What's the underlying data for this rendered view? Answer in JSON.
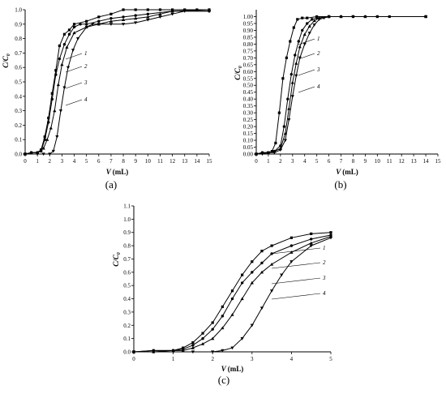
{
  "chart_data": [
    {
      "type": "line",
      "panel_label": "(a)",
      "xlabel_var": "V",
      "xlabel_unit": "(mL)",
      "ylabel_main": "C/C",
      "ylabel_sub": "0",
      "xlim": [
        0,
        15
      ],
      "ylim": [
        0,
        1.0
      ],
      "x_ticks": [
        "0",
        "1",
        "2",
        "3",
        "4",
        "5",
        "6",
        "7",
        "8",
        "9",
        "10",
        "11",
        "12",
        "13",
        "14",
        "15"
      ],
      "y_ticks": [
        "0.0",
        "0.1",
        "0.2",
        "0.3",
        "0.4",
        "0.5",
        "0.6",
        "0.7",
        "0.8",
        "0.9",
        "1.0"
      ],
      "series": [
        {
          "name": "1",
          "marker": "square",
          "points": [
            [
              0,
              0
            ],
            [
              0.5,
              0.01
            ],
            [
              1,
              0.01
            ],
            [
              1.3,
              0.03
            ],
            [
              1.6,
              0.12
            ],
            [
              1.9,
              0.25
            ],
            [
              2.2,
              0.42
            ],
            [
              2.5,
              0.58
            ],
            [
              2.8,
              0.75
            ],
            [
              3.2,
              0.83
            ],
            [
              3.6,
              0.86
            ],
            [
              4,
              0.9
            ],
            [
              5,
              0.92
            ],
            [
              6,
              0.95
            ],
            [
              7,
              0.97
            ],
            [
              8,
              1.0
            ],
            [
              9,
              1.0
            ],
            [
              10,
              1.0
            ],
            [
              11,
              1.0
            ],
            [
              12,
              1.0
            ],
            [
              13,
              1.0
            ],
            [
              14,
              1.0
            ],
            [
              15,
              1.0
            ]
          ]
        },
        {
          "name": "2",
          "marker": "circle",
          "points": [
            [
              0,
              0
            ],
            [
              0.5,
              0.01
            ],
            [
              1,
              0.01
            ],
            [
              1.3,
              0.02
            ],
            [
              1.6,
              0.1
            ],
            [
              1.9,
              0.22
            ],
            [
              2.2,
              0.38
            ],
            [
              2.5,
              0.55
            ],
            [
              2.8,
              0.66
            ],
            [
              3.2,
              0.76
            ],
            [
              3.6,
              0.83
            ],
            [
              4,
              0.88
            ],
            [
              4.5,
              0.9
            ],
            [
              5,
              0.9
            ],
            [
              6,
              0.92
            ],
            [
              7,
              0.94
            ],
            [
              8,
              0.95
            ],
            [
              9,
              0.96
            ],
            [
              10,
              0.97
            ],
            [
              12,
              0.99
            ],
            [
              15,
              0.99
            ]
          ]
        },
        {
          "name": "3",
          "marker": "triangle-up",
          "points": [
            [
              0,
              0
            ],
            [
              0.5,
              0.01
            ],
            [
              1,
              0.01
            ],
            [
              1.5,
              0.04
            ],
            [
              1.8,
              0.1
            ],
            [
              2.1,
              0.18
            ],
            [
              2.4,
              0.3
            ],
            [
              2.7,
              0.48
            ],
            [
              3,
              0.62
            ],
            [
              3.4,
              0.74
            ],
            [
              4,
              0.84
            ],
            [
              5,
              0.88
            ],
            [
              6,
              0.9
            ],
            [
              7,
              0.92
            ],
            [
              8,
              0.93
            ],
            [
              9,
              0.94
            ],
            [
              10,
              0.95
            ],
            [
              11,
              0.97
            ],
            [
              12,
              0.99
            ],
            [
              15,
              1.0
            ]
          ]
        },
        {
          "name": "4",
          "marker": "triangle-down",
          "points": [
            [
              0,
              0
            ],
            [
              1,
              0.0
            ],
            [
              1.5,
              0.0
            ],
            [
              2,
              0.0
            ],
            [
              2.3,
              0.02
            ],
            [
              2.6,
              0.12
            ],
            [
              2.9,
              0.3
            ],
            [
              3.2,
              0.46
            ],
            [
              3.5,
              0.6
            ],
            [
              3.9,
              0.72
            ],
            [
              4.3,
              0.8
            ],
            [
              5,
              0.88
            ],
            [
              5.5,
              0.9
            ],
            [
              6,
              0.9
            ],
            [
              7,
              0.9
            ],
            [
              8,
              0.9
            ],
            [
              9,
              0.91
            ],
            [
              10,
              0.93
            ],
            [
              11,
              0.95
            ],
            [
              12,
              0.97
            ],
            [
              13,
              0.99
            ],
            [
              15,
              0.99
            ]
          ]
        }
      ]
    },
    {
      "type": "line",
      "panel_label": "(b)",
      "xlabel_var": "V",
      "xlabel_unit": "(mL)",
      "ylabel_main": "C/C",
      "ylabel_sub": "0",
      "xlim": [
        0,
        15
      ],
      "ylim": [
        0,
        1.05
      ],
      "x_ticks": [
        "0",
        "1",
        "2",
        "3",
        "4",
        "5",
        "6",
        "7",
        "8",
        "9",
        "10",
        "11",
        "12",
        "13",
        "14",
        "15"
      ],
      "y_ticks": [
        "0.00",
        "0.05",
        "0.10",
        "0.15",
        "0.20",
        "0.25",
        "0.30",
        "0.35",
        "0.40",
        "0.45",
        "0.50",
        "0.55",
        "0.60",
        "0.65",
        "0.70",
        "0.75",
        "0.80",
        "0.85",
        "0.90",
        "0.95",
        "1.00"
      ],
      "series": [
        {
          "name": "1",
          "marker": "square",
          "points": [
            [
              0,
              0
            ],
            [
              0.5,
              0.01
            ],
            [
              1,
              0.01
            ],
            [
              1.3,
              0.02
            ],
            [
              1.6,
              0.08
            ],
            [
              1.9,
              0.3
            ],
            [
              2.2,
              0.55
            ],
            [
              2.5,
              0.7
            ],
            [
              2.8,
              0.82
            ],
            [
              3.1,
              0.92
            ],
            [
              3.4,
              0.98
            ],
            [
              3.8,
              0.99
            ],
            [
              4.2,
              0.99
            ],
            [
              5,
              1.0
            ],
            [
              6,
              1.0
            ],
            [
              7,
              1.0
            ],
            [
              8,
              1.0
            ],
            [
              9,
              1.0
            ],
            [
              10,
              1.0
            ],
            [
              11,
              1.0
            ],
            [
              14,
              1.0
            ]
          ]
        },
        {
          "name": "2",
          "marker": "circle",
          "points": [
            [
              0,
              0
            ],
            [
              0.5,
              0.01
            ],
            [
              1,
              0.01
            ],
            [
              1.5,
              0.02
            ],
            [
              2,
              0.06
            ],
            [
              2.3,
              0.2
            ],
            [
              2.6,
              0.4
            ],
            [
              2.9,
              0.58
            ],
            [
              3.2,
              0.72
            ],
            [
              3.5,
              0.82
            ],
            [
              3.8,
              0.9
            ],
            [
              4.2,
              0.95
            ],
            [
              4.6,
              0.98
            ],
            [
              5,
              0.99
            ],
            [
              6,
              1.0
            ],
            [
              7,
              1.0
            ],
            [
              8,
              1.0
            ],
            [
              10,
              1.0
            ],
            [
              14,
              1.0
            ]
          ]
        },
        {
          "name": "3",
          "marker": "triangle-up",
          "points": [
            [
              0,
              0
            ],
            [
              0.5,
              0.01
            ],
            [
              1,
              0.01
            ],
            [
              1.5,
              0.02
            ],
            [
              2,
              0.04
            ],
            [
              2.4,
              0.15
            ],
            [
              2.7,
              0.33
            ],
            [
              3,
              0.52
            ],
            [
              3.3,
              0.66
            ],
            [
              3.6,
              0.78
            ],
            [
              4,
              0.87
            ],
            [
              4.4,
              0.93
            ],
            [
              4.8,
              0.97
            ],
            [
              5.2,
              0.99
            ],
            [
              6,
              1.0
            ],
            [
              7,
              1.0
            ],
            [
              9,
              1.0
            ],
            [
              14,
              1.0
            ]
          ]
        },
        {
          "name": "4",
          "marker": "triangle-down",
          "points": [
            [
              0,
              0
            ],
            [
              0.5,
              0.0
            ],
            [
              1,
              0.01
            ],
            [
              1.5,
              0.01
            ],
            [
              2,
              0.03
            ],
            [
              2.4,
              0.1
            ],
            [
              2.7,
              0.25
            ],
            [
              3,
              0.42
            ],
            [
              3.3,
              0.57
            ],
            [
              3.6,
              0.7
            ],
            [
              4,
              0.8
            ],
            [
              4.4,
              0.88
            ],
            [
              4.8,
              0.94
            ],
            [
              5.2,
              0.98
            ],
            [
              5.6,
              0.99
            ],
            [
              6,
              1.0
            ],
            [
              8,
              1.0
            ],
            [
              14,
              1.0
            ]
          ]
        }
      ]
    },
    {
      "type": "line",
      "panel_label": "(c)",
      "xlabel_var": "V",
      "xlabel_unit": "(mL)",
      "ylabel_main": "C/C",
      "ylabel_sub": "0",
      "xlim": [
        0,
        5
      ],
      "ylim": [
        0,
        1.1
      ],
      "x_ticks": [
        "0",
        "1",
        "2",
        "3",
        "4",
        "5"
      ],
      "y_ticks": [
        "0.0",
        "0.1",
        "0.2",
        "0.3",
        "0.4",
        "0.5",
        "0.6",
        "0.7",
        "0.8",
        "0.9",
        "1.0",
        "1.1"
      ],
      "series": [
        {
          "name": "1",
          "marker": "square",
          "points": [
            [
              0,
              0
            ],
            [
              0.5,
              0.01
            ],
            [
              1,
              0.01
            ],
            [
              1.25,
              0.03
            ],
            [
              1.5,
              0.07
            ],
            [
              1.75,
              0.14
            ],
            [
              2,
              0.22
            ],
            [
              2.25,
              0.34
            ],
            [
              2.5,
              0.46
            ],
            [
              2.75,
              0.58
            ],
            [
              3,
              0.68
            ],
            [
              3.25,
              0.76
            ],
            [
              3.5,
              0.8
            ],
            [
              4,
              0.86
            ],
            [
              4.5,
              0.89
            ],
            [
              5,
              0.9
            ]
          ]
        },
        {
          "name": "2",
          "marker": "circle",
          "points": [
            [
              0,
              0
            ],
            [
              0.5,
              0.01
            ],
            [
              1,
              0.01
            ],
            [
              1.25,
              0.02
            ],
            [
              1.5,
              0.05
            ],
            [
              1.75,
              0.1
            ],
            [
              2,
              0.17
            ],
            [
              2.25,
              0.27
            ],
            [
              2.5,
              0.4
            ],
            [
              2.75,
              0.52
            ],
            [
              3,
              0.6
            ],
            [
              3.25,
              0.67
            ],
            [
              3.5,
              0.74
            ],
            [
              4,
              0.8
            ],
            [
              4.5,
              0.85
            ],
            [
              5,
              0.88
            ]
          ]
        },
        {
          "name": "3",
          "marker": "triangle-up",
          "points": [
            [
              0,
              0
            ],
            [
              0.5,
              0.0
            ],
            [
              1,
              0.01
            ],
            [
              1.25,
              0.01
            ],
            [
              1.5,
              0.03
            ],
            [
              1.75,
              0.06
            ],
            [
              2,
              0.1
            ],
            [
              2.25,
              0.18
            ],
            [
              2.5,
              0.28
            ],
            [
              2.75,
              0.4
            ],
            [
              3,
              0.52
            ],
            [
              3.25,
              0.6
            ],
            [
              3.5,
              0.66
            ],
            [
              4,
              0.75
            ],
            [
              4.5,
              0.82
            ],
            [
              5,
              0.87
            ]
          ]
        },
        {
          "name": "4",
          "marker": "triangle-down",
          "points": [
            [
              0,
              0
            ],
            [
              0.5,
              0.0
            ],
            [
              1,
              0.0
            ],
            [
              1.5,
              0.0
            ],
            [
              2,
              0.0
            ],
            [
              2.25,
              0.01
            ],
            [
              2.5,
              0.03
            ],
            [
              2.75,
              0.1
            ],
            [
              3,
              0.2
            ],
            [
              3.25,
              0.33
            ],
            [
              3.5,
              0.46
            ],
            [
              3.75,
              0.58
            ],
            [
              4,
              0.68
            ],
            [
              4.5,
              0.8
            ],
            [
              5,
              0.86
            ]
          ]
        }
      ]
    }
  ]
}
